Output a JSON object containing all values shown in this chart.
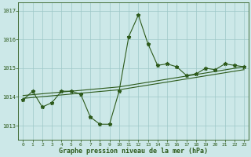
{
  "x": [
    0,
    1,
    2,
    3,
    4,
    5,
    6,
    7,
    8,
    9,
    10,
    11,
    12,
    13,
    14,
    15,
    16,
    17,
    18,
    19,
    20,
    21,
    22,
    23
  ],
  "y": [
    1013.9,
    1014.2,
    1013.65,
    1013.8,
    1014.2,
    1014.2,
    1014.1,
    1013.3,
    1013.05,
    1013.05,
    1014.2,
    1016.1,
    1016.85,
    1015.85,
    1015.1,
    1015.15,
    1015.05,
    1014.75,
    1014.8,
    1015.0,
    1014.95,
    1015.15,
    1015.1,
    1015.05
  ],
  "trend_x": [
    0,
    10,
    23
  ],
  "trend_y": [
    1014.05,
    1014.35,
    1015.05
  ],
  "trend2_x": [
    0,
    10,
    23
  ],
  "trend2_y": [
    1013.95,
    1014.25,
    1014.95
  ],
  "line_color": "#2d5a1b",
  "bg_color": "#cce8e8",
  "grid_color": "#9dc8c8",
  "xlabel": "Graphe pression niveau de la mer (hPa)",
  "ylim": [
    1012.5,
    1017.3
  ],
  "xlim": [
    -0.5,
    23.5
  ],
  "yticks": [
    1013,
    1014,
    1015,
    1016,
    1017
  ],
  "xticks": [
    0,
    1,
    2,
    3,
    4,
    5,
    6,
    7,
    8,
    9,
    10,
    11,
    12,
    13,
    14,
    15,
    16,
    17,
    18,
    19,
    20,
    21,
    22,
    23
  ],
  "tick_labels": [
    "0",
    "1",
    "2",
    "3",
    "4",
    "5",
    "6",
    "7",
    "8",
    "9",
    "10",
    "11",
    "12",
    "13",
    "14",
    "15",
    "16",
    "17",
    "18",
    "19",
    "20",
    "21",
    "22",
    "23"
  ],
  "marker": "*",
  "markersize": 3.5,
  "linewidth": 0.8
}
